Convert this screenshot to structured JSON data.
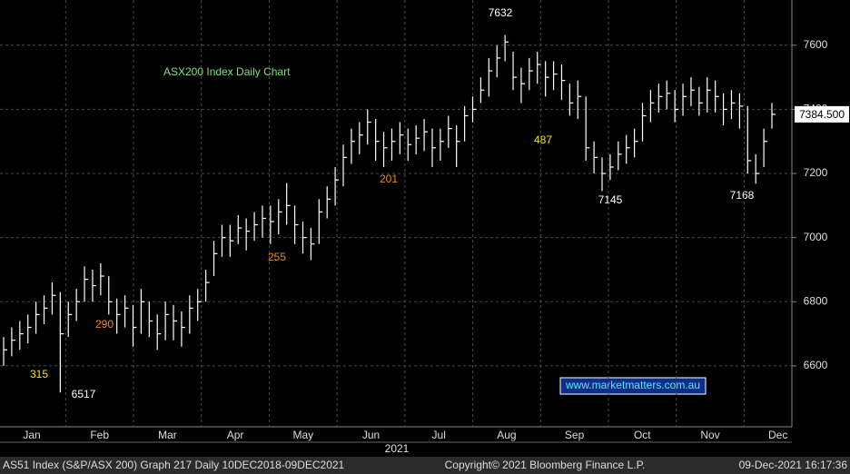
{
  "chart_data": {
    "type": "hlc",
    "title": "ASX200 Index Daily Chart",
    "year_label": "2021",
    "months": [
      "Jan",
      "Feb",
      "Mar",
      "Apr",
      "May",
      "Jun",
      "Jul",
      "Aug",
      "Sep",
      "Oct",
      "Nov",
      "Dec"
    ],
    "ylim": [
      6410,
      7741
    ],
    "yticks": [
      6600,
      6800,
      7000,
      7200,
      7400,
      7600
    ],
    "grid": true,
    "color": "#ffffff",
    "high": [
      6690,
      6720,
      6740,
      6760,
      6800,
      6820,
      6860,
      6830,
      6800,
      6840,
      6910,
      6900,
      6920,
      6880,
      6810,
      6820,
      6790,
      6840,
      6800,
      6760,
      6800,
      6790,
      6770,
      6820,
      6840,
      6900,
      6990,
      7040,
      7040,
      7070,
      7060,
      7080,
      7100,
      7100,
      7120,
      7170,
      7100,
      7050,
      7030,
      7120,
      7160,
      7220,
      7290,
      7340,
      7360,
      7400,
      7370,
      7330,
      7340,
      7360,
      7340,
      7350,
      7370,
      7340,
      7340,
      7380,
      7350,
      7410,
      7440,
      7500,
      7560,
      7600,
      7632,
      7580,
      7530,
      7560,
      7580,
      7550,
      7550,
      7540,
      7480,
      7490,
      7440,
      7300,
      7250,
      7260,
      7300,
      7320,
      7340,
      7420,
      7460,
      7480,
      7490,
      7460,
      7480,
      7500,
      7470,
      7500,
      7490,
      7450,
      7460,
      7450,
      7410,
      7260,
      7340,
      7420
    ],
    "low": [
      6600,
      6630,
      6650,
      6670,
      6700,
      6730,
      6760,
      6517,
      6690,
      6740,
      6800,
      6800,
      6820,
      6760,
      6700,
      6720,
      6660,
      6700,
      6690,
      6650,
      6680,
      6680,
      6660,
      6700,
      6740,
      6800,
      6880,
      6940,
      6940,
      6980,
      6960,
      6990,
      7000,
      6980,
      7010,
      7040,
      6980,
      6950,
      6930,
      6980,
      7060,
      7100,
      7160,
      7230,
      7260,
      7290,
      7240,
      7220,
      7240,
      7260,
      7240,
      7260,
      7270,
      7220,
      7240,
      7280,
      7220,
      7300,
      7360,
      7420,
      7440,
      7500,
      7550,
      7460,
      7420,
      7460,
      7480,
      7440,
      7460,
      7430,
      7380,
      7370,
      7240,
      7200,
      7145,
      7180,
      7210,
      7230,
      7250,
      7300,
      7360,
      7390,
      7400,
      7360,
      7380,
      7410,
      7380,
      7390,
      7390,
      7350,
      7370,
      7340,
      7200,
      7168,
      7220,
      7340
    ],
    "close": [
      6650,
      6680,
      6700,
      6720,
      6760,
      6780,
      6820,
      6700,
      6760,
      6800,
      6870,
      6850,
      6880,
      6800,
      6760,
      6780,
      6720,
      6800,
      6740,
      6700,
      6760,
      6740,
      6720,
      6780,
      6800,
      6860,
      6950,
      7000,
      6990,
      7030,
      7020,
      7040,
      7060,
      7050,
      7080,
      7100,
      7040,
      7000,
      6980,
      7080,
      7120,
      7180,
      7250,
      7300,
      7320,
      7360,
      7300,
      7280,
      7300,
      7320,
      7290,
      7310,
      7330,
      7280,
      7300,
      7340,
      7300,
      7380,
      7400,
      7460,
      7520,
      7560,
      7610,
      7500,
      7480,
      7520,
      7540,
      7500,
      7510,
      7490,
      7420,
      7440,
      7280,
      7250,
      7200,
      7220,
      7260,
      7280,
      7300,
      7380,
      7420,
      7440,
      7450,
      7400,
      7440,
      7460,
      7420,
      7460,
      7440,
      7400,
      7420,
      7410,
      7240,
      7200,
      7300,
      7384.5
    ],
    "last_price": {
      "value": 7384.5,
      "label": "7384.500"
    },
    "annotations": {
      "yellow": [
        "315",
        "487"
      ],
      "orange": [
        "290",
        "255",
        "201"
      ],
      "white": [
        "6517",
        "7632",
        "7145",
        "7168"
      ]
    },
    "watermark": "www.marketmatters.com.au",
    "footer": {
      "left": "AS51 Index (S&P/ASX 200) Graph 217  Daily 10DEC2018-09DEC2021",
      "center": "Copyright© 2021 Bloomberg Finance L.P.",
      "right": "09-Dec-2021 16:17:36"
    }
  }
}
